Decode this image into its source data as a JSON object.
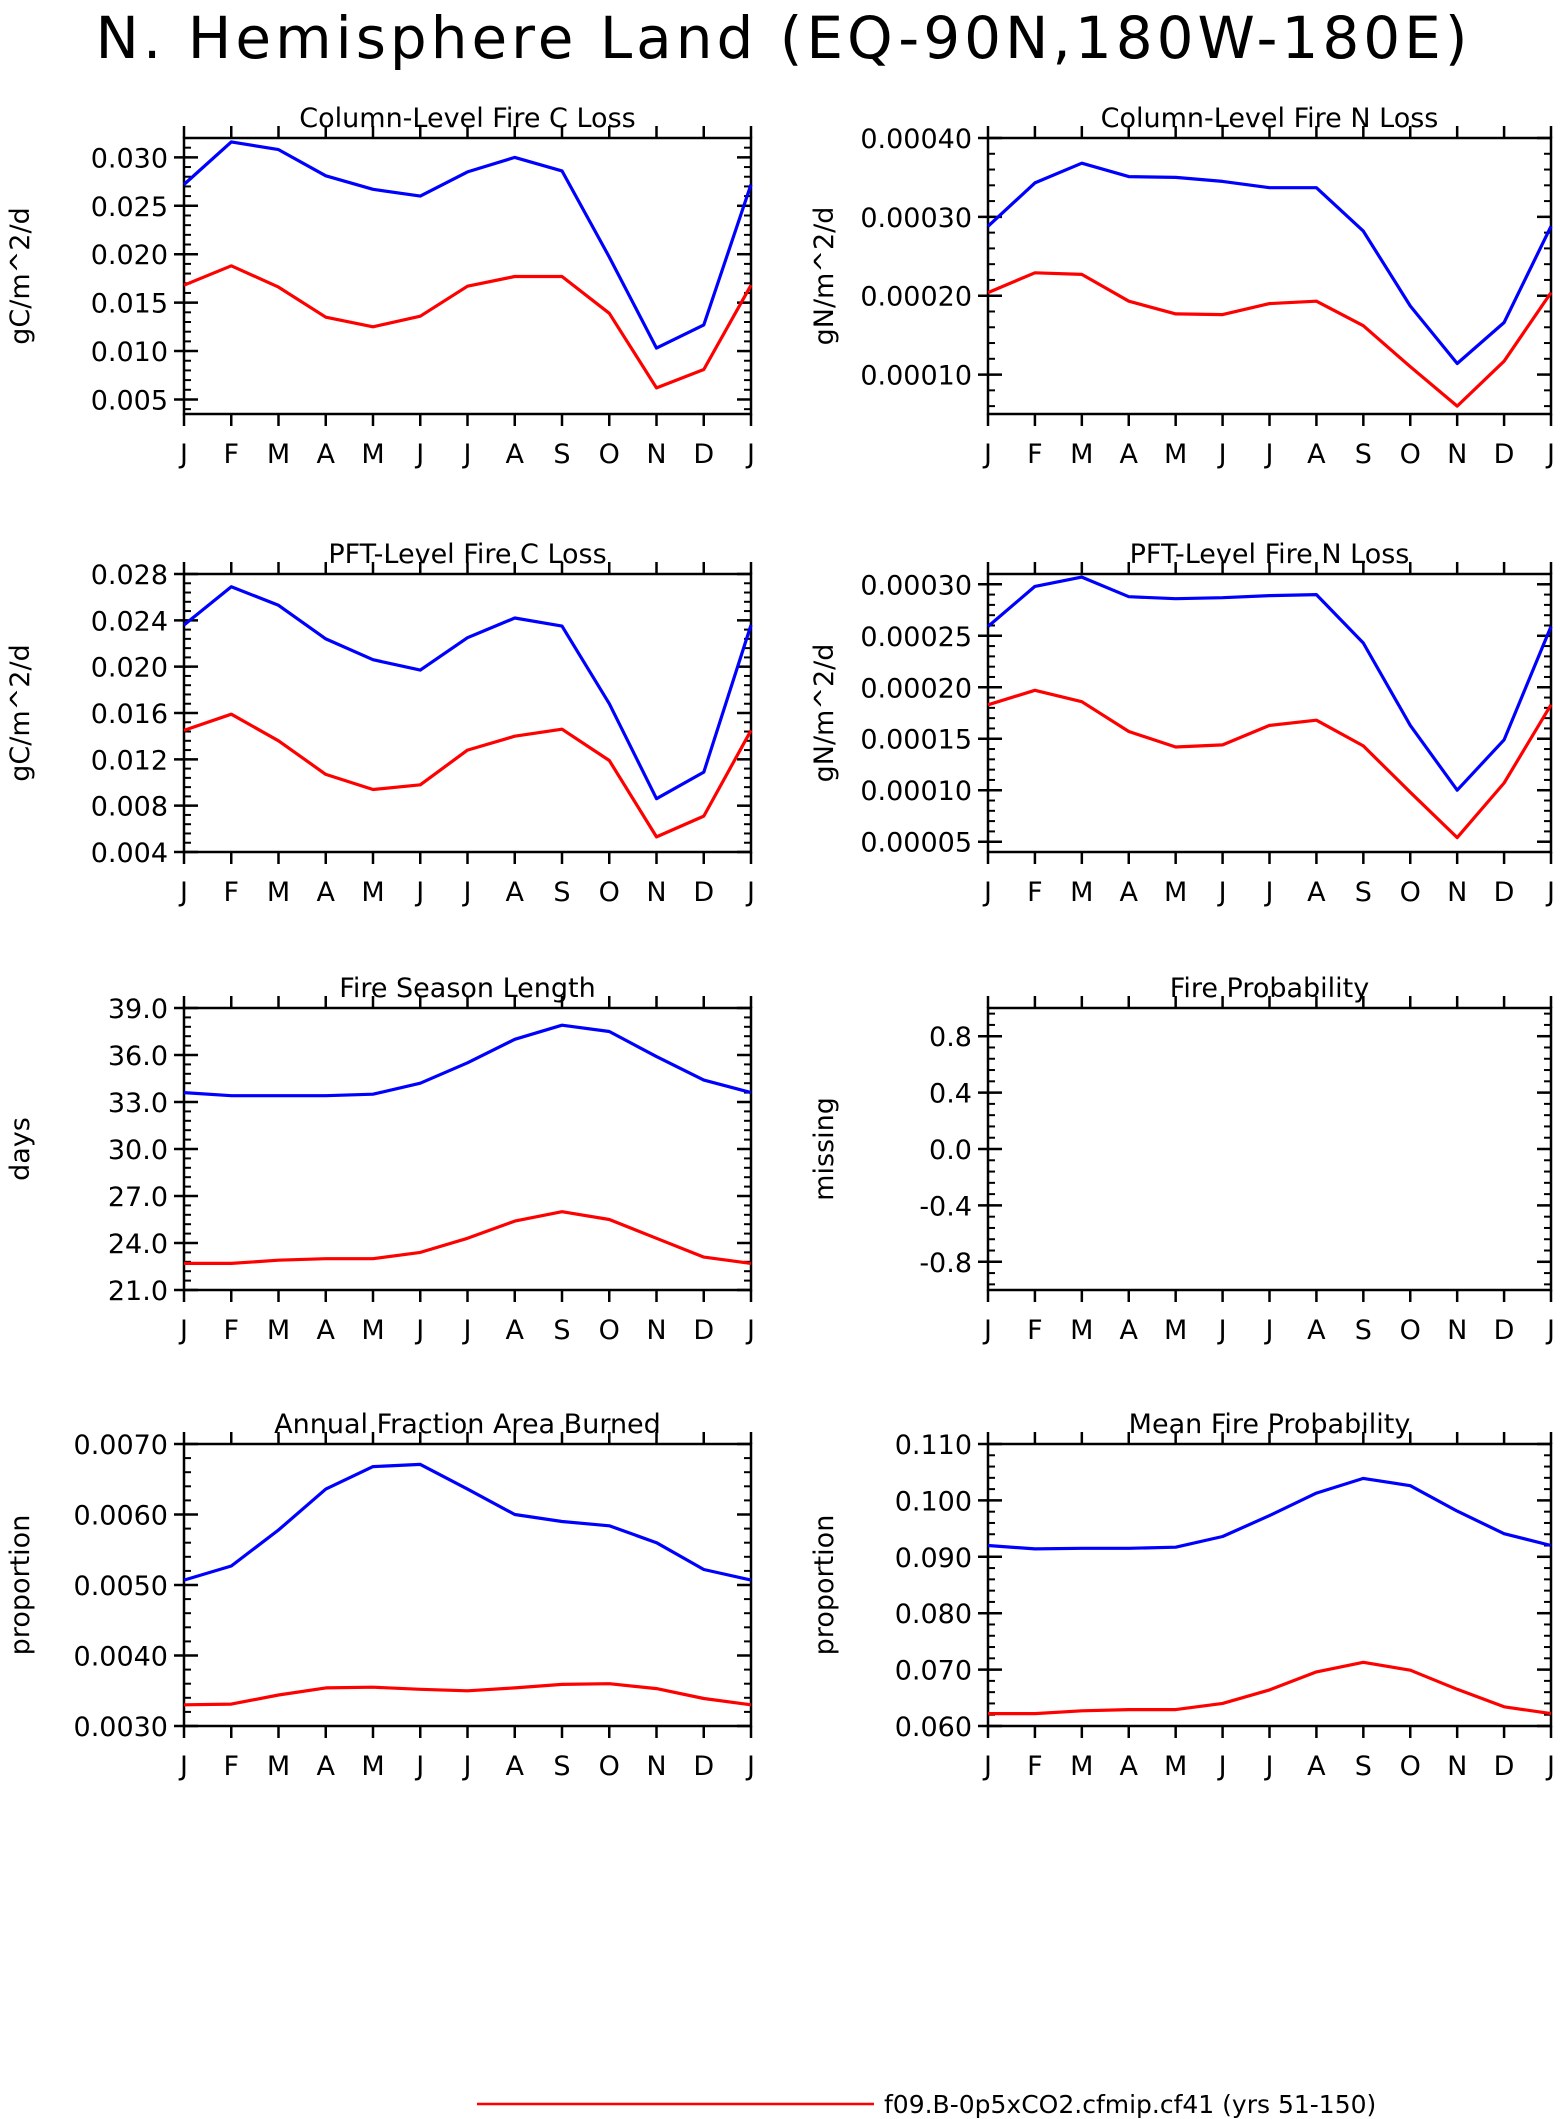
{
  "title": "N. Hemisphere Land (EQ-90N,180W-180E)",
  "months": [
    "J",
    "F",
    "M",
    "A",
    "M",
    "J",
    "J",
    "A",
    "S",
    "O",
    "N",
    "D",
    "J"
  ],
  "colors": {
    "series1": "#0000ff",
    "series2": "#ff0000"
  },
  "legend": {
    "entries": [
      {
        "label": "f09.B-0p5xCO2.cfmip.cf41 (yrs 51-150)",
        "color": "#ff0000"
      }
    ]
  },
  "chart_data": [
    {
      "type": "line",
      "title": "Column-Level Fire C Loss",
      "ylabel": "gC/m^2/d",
      "ylim": [
        0.0035,
        0.032
      ],
      "yticks": [
        0.005,
        0.01,
        0.015,
        0.02,
        0.025,
        0.03
      ],
      "yticklabels": [
        "0.005",
        "0.010",
        "0.015",
        "0.020",
        "0.025",
        "0.030"
      ],
      "series": [
        {
          "color": "#0000ff",
          "values": [
            0.0272,
            0.0316,
            0.0308,
            0.0281,
            0.0267,
            0.026,
            0.0285,
            0.03,
            0.0286,
            0.0197,
            0.0103,
            0.0127,
            0.0272
          ]
        },
        {
          "color": "#ff0000",
          "values": [
            0.0168,
            0.0188,
            0.0166,
            0.0135,
            0.0125,
            0.0136,
            0.0167,
            0.0177,
            0.0177,
            0.0139,
            0.0062,
            0.0081,
            0.0168
          ]
        }
      ]
    },
    {
      "type": "line",
      "title": "Column-Level Fire N Loss",
      "ylabel": "gN/m^2/d",
      "ylim": [
        5e-05,
        0.0004
      ],
      "yticks": [
        0.0001,
        0.0002,
        0.0003,
        0.0004
      ],
      "yticklabels": [
        "0.00010",
        "0.00020",
        "0.00030",
        "0.00040"
      ],
      "series": [
        {
          "color": "#0000ff",
          "values": [
            0.000288,
            0.000343,
            0.000368,
            0.000351,
            0.00035,
            0.000345,
            0.000337,
            0.000337,
            0.000282,
            0.000187,
            0.000114,
            0.000166,
            0.000288
          ]
        },
        {
          "color": "#ff0000",
          "values": [
            0.000204,
            0.000229,
            0.000227,
            0.000193,
            0.000177,
            0.000176,
            0.00019,
            0.000193,
            0.000162,
            0.00011,
            6e-05,
            0.000117,
            0.000204
          ]
        }
      ]
    },
    {
      "type": "line",
      "title": "PFT-Level Fire C Loss",
      "ylabel": "gC/m^2/d",
      "ylim": [
        0.004,
        0.028
      ],
      "yticks": [
        0.004,
        0.008,
        0.012,
        0.016,
        0.02,
        0.024,
        0.028
      ],
      "yticklabels": [
        "0.004",
        "0.008",
        "0.012",
        "0.016",
        "0.020",
        "0.024",
        "0.028"
      ],
      "series": [
        {
          "color": "#0000ff",
          "values": [
            0.0236,
            0.0269,
            0.0253,
            0.0224,
            0.0206,
            0.0197,
            0.0225,
            0.0242,
            0.0235,
            0.0168,
            0.0086,
            0.0109,
            0.0236
          ]
        },
        {
          "color": "#ff0000",
          "values": [
            0.0145,
            0.0159,
            0.0136,
            0.0107,
            0.0094,
            0.0098,
            0.0128,
            0.014,
            0.0146,
            0.0119,
            0.0053,
            0.0071,
            0.0145
          ]
        }
      ]
    },
    {
      "type": "line",
      "title": "PFT-Level Fire N Loss",
      "ylabel": "gN/m^2/d",
      "ylim": [
        4e-05,
        0.00031
      ],
      "yticks": [
        5e-05,
        0.0001,
        0.00015,
        0.0002,
        0.00025,
        0.0003
      ],
      "yticklabels": [
        "0.00005",
        "0.00010",
        "0.00015",
        "0.00020",
        "0.00025",
        "0.00030"
      ],
      "series": [
        {
          "color": "#0000ff",
          "values": [
            0.000259,
            0.000298,
            0.000307,
            0.000288,
            0.000286,
            0.000287,
            0.000289,
            0.00029,
            0.000243,
            0.000163,
            0.0001,
            0.000149,
            0.000259
          ]
        },
        {
          "color": "#ff0000",
          "values": [
            0.000183,
            0.000197,
            0.000186,
            0.000157,
            0.000142,
            0.000144,
            0.000163,
            0.000168,
            0.000143,
            9.8e-05,
            5.4e-05,
            0.000107,
            0.000183
          ]
        }
      ]
    },
    {
      "type": "line",
      "title": "Fire Season Length",
      "ylabel": "days",
      "ylim": [
        21.0,
        39.0
      ],
      "yticks": [
        21,
        24,
        27,
        30,
        33,
        36,
        39
      ],
      "yticklabels": [
        "21.0",
        "24.0",
        "27.0",
        "30.0",
        "33.0",
        "36.0",
        "39.0"
      ],
      "series": [
        {
          "color": "#0000ff",
          "values": [
            33.6,
            33.4,
            33.4,
            33.4,
            33.5,
            34.2,
            35.5,
            37.0,
            37.9,
            37.5,
            35.9,
            34.4,
            33.6
          ]
        },
        {
          "color": "#ff0000",
          "values": [
            22.7,
            22.7,
            22.9,
            23.0,
            23.0,
            23.4,
            24.3,
            25.4,
            26.0,
            25.5,
            24.3,
            23.1,
            22.7
          ]
        }
      ]
    },
    {
      "type": "line",
      "title": "Fire Probability",
      "ylabel": "missing",
      "ylim": [
        -1.0,
        1.0
      ],
      "yticks": [
        -0.8,
        -0.4,
        0.0,
        0.4,
        0.8
      ],
      "yticklabels": [
        "-0.8",
        "-0.4",
        "0.0",
        "0.4",
        "0.8"
      ],
      "series": []
    },
    {
      "type": "line",
      "title": "Annual Fraction Area Burned",
      "ylabel": "proportion",
      "ylim": [
        0.003,
        0.007
      ],
      "yticks": [
        0.003,
        0.004,
        0.005,
        0.006,
        0.007
      ],
      "yticklabels": [
        "0.0030",
        "0.0040",
        "0.0050",
        "0.0060",
        "0.0070"
      ],
      "series": [
        {
          "color": "#0000ff",
          "values": [
            0.00507,
            0.00527,
            0.00578,
            0.00636,
            0.00668,
            0.00671,
            0.00636,
            0.006,
            0.0059,
            0.00584,
            0.0056,
            0.00522,
            0.00507
          ]
        },
        {
          "color": "#ff0000",
          "values": [
            0.0033,
            0.00331,
            0.00344,
            0.00354,
            0.00355,
            0.00352,
            0.0035,
            0.00354,
            0.00359,
            0.0036,
            0.00353,
            0.00339,
            0.0033
          ]
        }
      ]
    },
    {
      "type": "line",
      "title": "Mean Fire Probability",
      "ylabel": "proportion",
      "ylim": [
        0.06,
        0.11
      ],
      "yticks": [
        0.06,
        0.07,
        0.08,
        0.09,
        0.1,
        0.11
      ],
      "yticklabels": [
        "0.060",
        "0.070",
        "0.080",
        "0.090",
        "0.100",
        "0.110"
      ],
      "series": [
        {
          "color": "#0000ff",
          "values": [
            0.092,
            0.0914,
            0.0915,
            0.0915,
            0.0917,
            0.0936,
            0.0973,
            0.1013,
            0.1039,
            0.1026,
            0.0981,
            0.0941,
            0.092
          ]
        },
        {
          "color": "#ff0000",
          "values": [
            0.0622,
            0.0622,
            0.0627,
            0.0629,
            0.0629,
            0.064,
            0.0664,
            0.0696,
            0.0713,
            0.0699,
            0.0665,
            0.0634,
            0.0622
          ]
        }
      ]
    }
  ]
}
